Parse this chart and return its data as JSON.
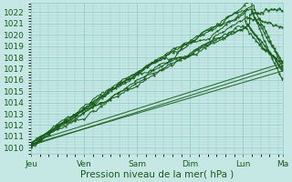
{
  "title": "",
  "xlabel": "Pression niveau de la mer( hPa )",
  "ylabel": "",
  "background_color": "#c5e8e5",
  "grid_color": "#98ccc8",
  "line_color": "#1a5c1a",
  "ylim": [
    1009.5,
    1022.8
  ],
  "yticks": [
    1010,
    1011,
    1012,
    1013,
    1014,
    1015,
    1016,
    1017,
    1018,
    1019,
    1020,
    1021,
    1022
  ],
  "days": [
    "Jeu",
    "Ven",
    "Sam",
    "Dim",
    "Lun",
    "Ma"
  ],
  "day_positions": [
    0,
    24,
    48,
    72,
    96,
    114
  ],
  "total_hours": 114,
  "figsize": [
    3.2,
    2.0
  ],
  "dpi": 100
}
